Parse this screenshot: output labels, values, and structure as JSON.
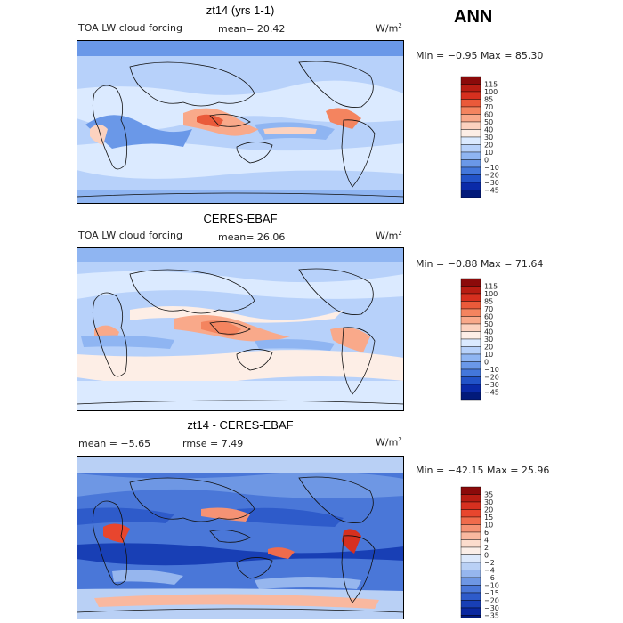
{
  "header": {
    "season": "ANN"
  },
  "panels": [
    {
      "title": "zt14 (yrs 1-1)",
      "left_label": "TOA LW cloud forcing",
      "mean_label": "mean=",
      "mean_value": "20.42",
      "units": "W/m",
      "units_sup": "2",
      "min_label": "Min =",
      "min_value": "−0.95",
      "max_label": "Max =",
      "max_value": "85.30"
    },
    {
      "title": "CERES-EBAF",
      "left_label": "TOA LW cloud forcing",
      "mean_label": "mean=",
      "mean_value": "26.06",
      "units": "W/m",
      "units_sup": "2",
      "min_label": "Min =",
      "min_value": "−0.88",
      "max_label": "Max =",
      "max_value": "71.64"
    },
    {
      "title": "zt14 - CERES-EBAF",
      "left_label": "mean =   −5.65",
      "mean_label": "rmse =",
      "mean_value": "7.49",
      "units": "W/m",
      "units_sup": "2",
      "min_label": "Min =",
      "min_value": "−42.15",
      "max_label": "Max =",
      "max_value": "25.96"
    }
  ],
  "chart_data": [
    {
      "type": "heatmap",
      "title": "zt14 (yrs 1-1)",
      "variable": "TOA LW cloud forcing",
      "units": "W/m2",
      "mean": 20.42,
      "min": -0.95,
      "max": 85.3,
      "colorbar": {
        "levels": [
          "115",
          "100",
          "85",
          "70",
          "60",
          "50",
          "40",
          "30",
          "20",
          "10",
          "0",
          "−10",
          "−20",
          "−30",
          "−45"
        ],
        "colors": [
          "#8b0a0a",
          "#b81d13",
          "#d7301f",
          "#ea5a3a",
          "#f4845f",
          "#f9a98a",
          "#fcd2bf",
          "#fdeee6",
          "#dbeaff",
          "#b7d1fa",
          "#8fb5f2",
          "#6a98e8",
          "#4377db",
          "#2253c8",
          "#0a2aa8",
          "#021a7a"
        ]
      }
    },
    {
      "type": "heatmap",
      "title": "CERES-EBAF",
      "variable": "TOA LW cloud forcing",
      "units": "W/m2",
      "mean": 26.06,
      "min": -0.88,
      "max": 71.64,
      "colorbar": {
        "levels": [
          "115",
          "100",
          "85",
          "70",
          "60",
          "50",
          "40",
          "30",
          "20",
          "10",
          "0",
          "−10",
          "−20",
          "−30",
          "−45"
        ],
        "colors": [
          "#8b0a0a",
          "#b81d13",
          "#d7301f",
          "#ea5a3a",
          "#f4845f",
          "#f9a98a",
          "#fcd2bf",
          "#fdeee6",
          "#dbeaff",
          "#b7d1fa",
          "#8fb5f2",
          "#6a98e8",
          "#4377db",
          "#2253c8",
          "#0a2aa8",
          "#021a7a"
        ]
      }
    },
    {
      "type": "heatmap",
      "title": "zt14 - CERES-EBAF",
      "units": "W/m2",
      "mean": -5.65,
      "rmse": 7.49,
      "min": -42.15,
      "max": 25.96,
      "colorbar": {
        "levels": [
          "35",
          "30",
          "20",
          "15",
          "10",
          "6",
          "4",
          "2",
          "0",
          "−2",
          "−4",
          "−6",
          "−10",
          "−15",
          "−20",
          "−30",
          "−35"
        ],
        "colors": [
          "#8b0a0a",
          "#b81d13",
          "#d7301f",
          "#e8462e",
          "#f06b4c",
          "#f59274",
          "#f9b89f",
          "#fcdccd",
          "#fbeee8",
          "#dce8fb",
          "#b9d0f5",
          "#96b6ee",
          "#6e97e4",
          "#4a77d8",
          "#2e5bca",
          "#183fb5",
          "#0a28a0",
          "#031a7c"
        ]
      }
    }
  ]
}
